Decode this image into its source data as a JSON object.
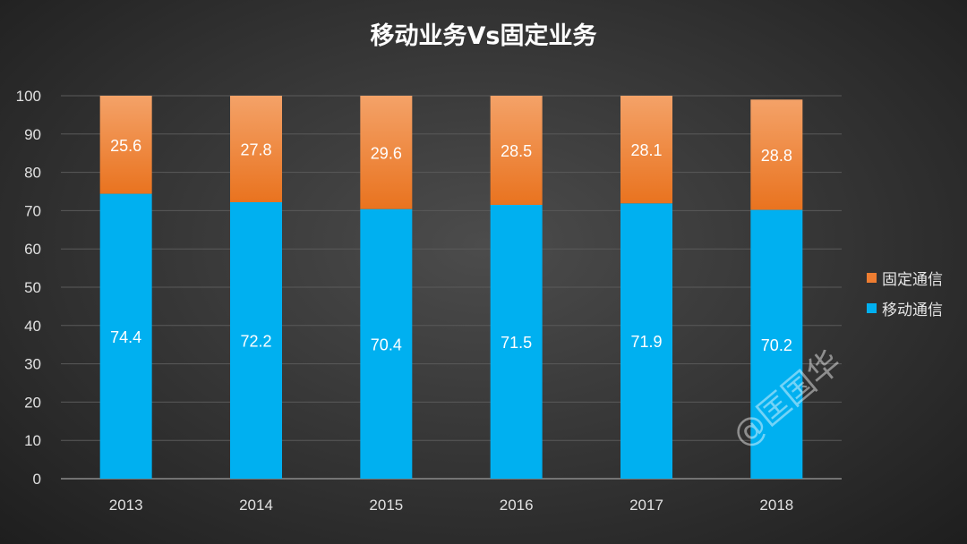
{
  "chart_data": {
    "type": "bar",
    "stacked": true,
    "title": "移动业务Vs固定业务",
    "categories": [
      "2013",
      "2014",
      "2015",
      "2016",
      "2017",
      "2018"
    ],
    "series": [
      {
        "name": "移动通信",
        "color": "#00b0f0",
        "values": [
          74.4,
          72.2,
          70.4,
          71.5,
          71.9,
          70.2
        ]
      },
      {
        "name": "固定通信",
        "color": "#ee7d31",
        "values": [
          25.6,
          27.8,
          29.6,
          28.5,
          28.1,
          28.8
        ]
      }
    ],
    "ylim": [
      0,
      100
    ],
    "yticks": [
      0,
      10,
      20,
      30,
      40,
      50,
      60,
      70,
      80,
      90,
      100
    ],
    "grid": true,
    "legend": "right",
    "xlabel": "",
    "ylabel": ""
  },
  "watermark": "@匡国华"
}
